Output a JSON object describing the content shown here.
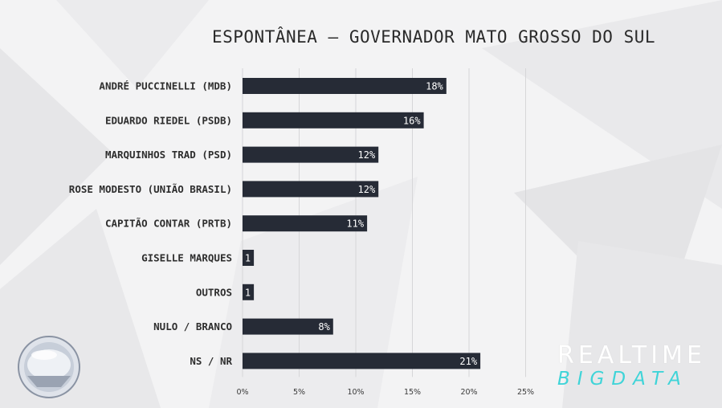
{
  "colors": {
    "bar": "#262b36",
    "background": "#f3f3f4",
    "accent": "#3fd4d8"
  },
  "chart_data": {
    "type": "bar",
    "orientation": "horizontal",
    "title": "ESPONTÂNEA – GOVERNADOR MATO GROSSO DO SUL",
    "categories": [
      "ANDRÉ PUCCINELLI (MDB)",
      "EDUARDO RIEDEL (PSDB)",
      "MARQUINHOS TRAD (PSD)",
      "ROSE MODESTO (UNIÃO BRASIL)",
      "CAPITÃO CONTAR (PRTB)",
      "GISELLE MARQUES",
      "OUTROS",
      "NULO / BRANCO",
      "NS / NR"
    ],
    "values": [
      18,
      16,
      12,
      12,
      11,
      1,
      1,
      8,
      21
    ],
    "value_labels": [
      "18%",
      "16%",
      "12%",
      "12%",
      "11%",
      "1",
      "1",
      "8%",
      "21%"
    ],
    "xlim": [
      0,
      25
    ],
    "xticks": [
      "0%",
      "5%",
      "10%",
      "15%",
      "20%",
      "25%"
    ],
    "grid": true
  },
  "branding": {
    "line1": "REALTIME",
    "line2": "BIGDATA",
    "logo_icon": "record-tv-logo-icon"
  }
}
